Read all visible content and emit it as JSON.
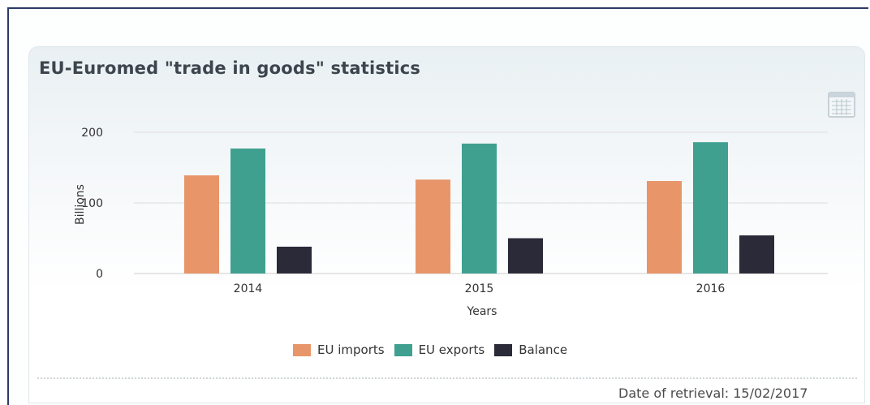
{
  "widget": {
    "title": "EU-Euromed \"trade in goods\" statistics",
    "retrieval_text": "Date of retrieval: 15/02/2017",
    "table_icon": "table-icon"
  },
  "colors": {
    "imports": "#e8956a",
    "exports": "#3fa090",
    "balance": "#2b2a39",
    "grid": "#e6e6e6",
    "title": "#3c454d"
  },
  "chart_data": {
    "type": "bar",
    "title": "EU-Euromed \"trade in goods\" statistics",
    "xlabel": "Years",
    "ylabel": "Billions",
    "categories": [
      "2014",
      "2015",
      "2016"
    ],
    "ylim": [
      0,
      200
    ],
    "yticks": [
      0,
      100,
      200
    ],
    "grid": true,
    "legend_position": "bottom-center",
    "series": [
      {
        "name": "EU imports",
        "values": [
          139,
          133,
          131
        ],
        "color": "#e8956a"
      },
      {
        "name": "EU exports",
        "values": [
          177,
          184,
          186
        ],
        "color": "#3fa090"
      },
      {
        "name": "Balance",
        "values": [
          38,
          50,
          54
        ],
        "color": "#2b2a39"
      }
    ]
  }
}
